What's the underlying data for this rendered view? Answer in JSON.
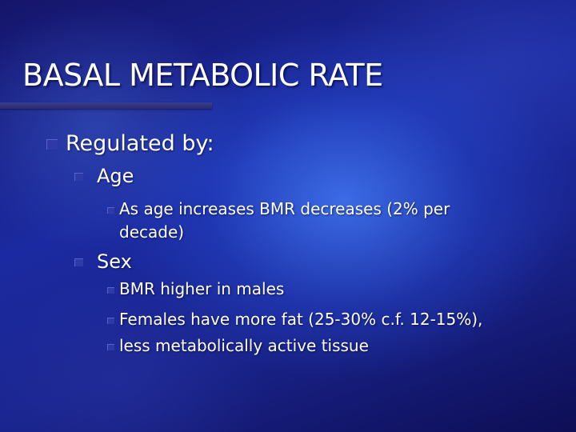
{
  "slide": {
    "title": "BASAL METABOLIC RATE",
    "level1": "Regulated by:",
    "age": {
      "label": "Age",
      "point_line1": "As age increases BMR decreases (2% per",
      "point_line2": "decade)"
    },
    "sex": {
      "label": "Sex",
      "points": [
        "BMR higher in males",
        "Females have more fat (25-30% c.f. 12-15%),",
        "less metabolically active tissue"
      ]
    }
  },
  "colors": {
    "background": "#1b2aa0",
    "bullet": "#2d3aa8",
    "text": "#ffffff"
  }
}
